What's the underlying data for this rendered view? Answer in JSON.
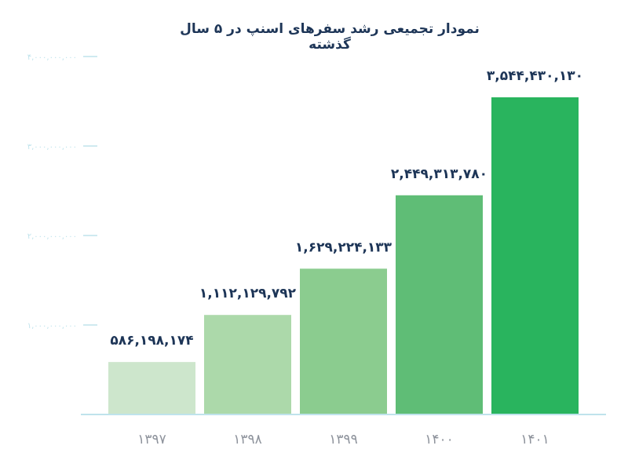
{
  "chart_data": {
    "type": "bar",
    "title": "نمودار تجمیعی رشد سفرهای اسنپ در ۵ سال گذشته",
    "xlabel": "",
    "ylabel": "",
    "categories": [
      "۱۳۹۷",
      "۱۳۹۸",
      "۱۳۹۹",
      "۱۴۰۰",
      "۱۴۰۱"
    ],
    "values": [
      586198174,
      1112129792,
      1629224133,
      2449313780,
      3544430130
    ],
    "value_labels": [
      "۵۸۶,۱۹۸,۱۷۴",
      "۱,۱۱۲,۱۲۹,۷۹۲",
      "۱,۶۲۹,۲۲۴,۱۳۳",
      "۲,۴۴۹,۳۱۳,۷۸۰",
      "۳,۵۴۴,۴۳۰,۱۳۰"
    ],
    "y_ticks": [
      1000000000,
      2000000000,
      3000000000,
      4000000000
    ],
    "y_tick_labels": [
      "۱,۰۰۰,۰۰۰,۰۰۰",
      "۲,۰۰۰,۰۰۰,۰۰۰",
      "۳,۰۰۰,۰۰۰,۰۰۰",
      "۴,۰۰۰,۰۰۰,۰۰۰"
    ],
    "ylim": [
      0,
      4000000000
    ],
    "bar_colors": [
      "#cde6cc",
      "#acd9aa",
      "#8bcc8f",
      "#5fbd76",
      "#29b45e"
    ],
    "grid": false,
    "axis_color": "#bfe3ec"
  }
}
